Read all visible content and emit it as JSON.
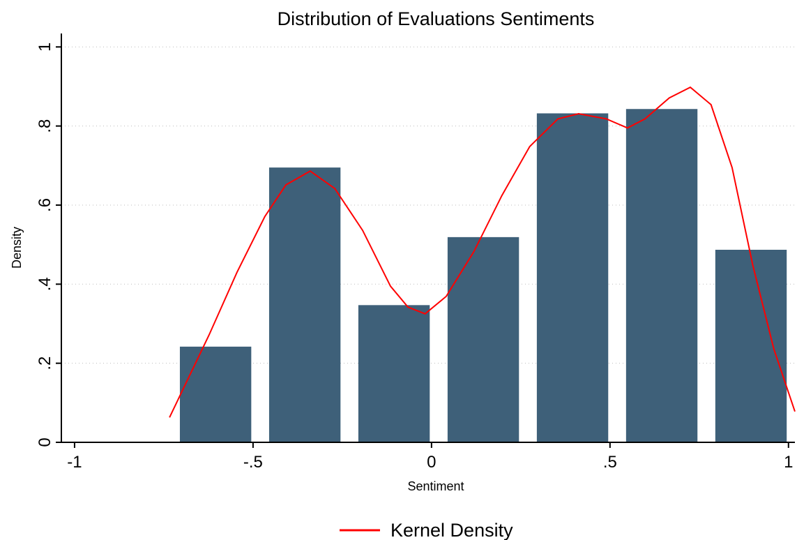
{
  "chart_data": {
    "type": "histogram",
    "title": "Distribution of Evaluations Sentiments",
    "x_label": "Sentiment",
    "y_label": "Density",
    "bins": [
      -0.73,
      -0.48,
      -0.23,
      0.02,
      0.27,
      0.52,
      0.77,
      1.02
    ],
    "values": [
      0.242,
      0.695,
      0.347,
      0.519,
      0.832,
      0.843,
      0.487
    ],
    "color": "#3e6079",
    "lines": [
      {
        "name": "Kernel Density",
        "color": "#ff0000",
        "x": [
          -0.734,
          -0.623,
          -0.545,
          -0.467,
          -0.408,
          -0.34,
          -0.271,
          -0.193,
          -0.115,
          -0.066,
          -0.018,
          0.041,
          0.119,
          0.197,
          0.275,
          0.354,
          0.412,
          0.49,
          0.549,
          0.598,
          0.666,
          0.725,
          0.783,
          0.842,
          0.9,
          0.959,
          1.018
        ],
        "values": [
          0.063,
          0.272,
          0.43,
          0.571,
          0.651,
          0.686,
          0.642,
          0.536,
          0.395,
          0.342,
          0.325,
          0.369,
          0.483,
          0.624,
          0.748,
          0.818,
          0.831,
          0.818,
          0.795,
          0.818,
          0.871,
          0.898,
          0.854,
          0.695,
          0.448,
          0.236,
          0.078
        ]
      }
    ],
    "xlim": [
      -1.037,
      1.018
    ],
    "ylim": [
      0,
      1.034
    ],
    "xticks": [
      -1,
      {
        "value": -0.5,
        "label": "-.5"
      },
      0,
      {
        "value": 0.5,
        "label": ".5"
      },
      1
    ],
    "yticks": [
      0,
      {
        "value": 0.2,
        "label": ".2"
      },
      {
        "value": 0.4,
        "label": ".4"
      },
      {
        "value": 0.6,
        "label": ".6"
      },
      {
        "value": 0.8,
        "label": ".8"
      },
      1
    ],
    "grid": true,
    "legend": "bottom"
  }
}
